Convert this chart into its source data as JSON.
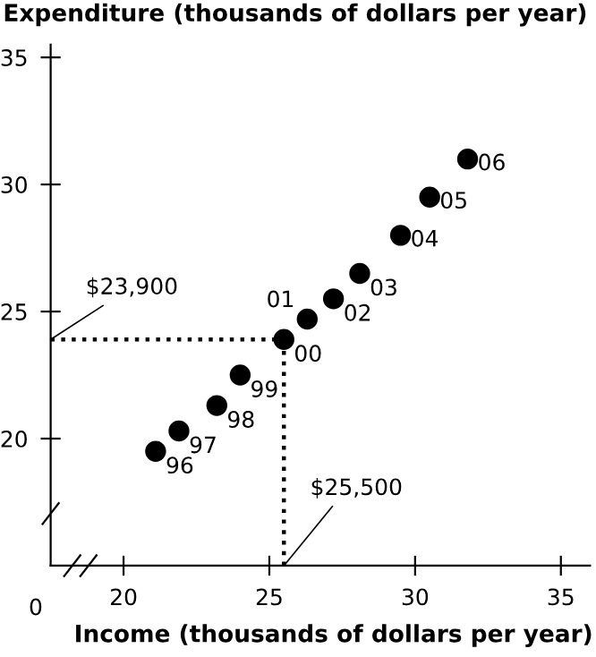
{
  "chart_data": {
    "type": "scatter",
    "xlabel": "Income (thousands of dollars per year)",
    "ylabel": "Expenditure (thousands of dollars per year)",
    "x": [
      21.1,
      21.9,
      23.2,
      24.0,
      25.5,
      26.3,
      27.2,
      28.1,
      29.5,
      30.5,
      31.8
    ],
    "series": [
      {
        "color": "#000000",
        "values": [
          19.5,
          20.3,
          21.3,
          22.5,
          23.9,
          24.7,
          25.5,
          26.5,
          28.0,
          29.5,
          31.0
        ]
      }
    ],
    "marker": "circle",
    "xlim": [
      17.5,
      36
    ],
    "ylim": [
      15,
      35.5
    ],
    "xticks": [
      20,
      25,
      30,
      35
    ],
    "yticks": [
      20,
      25,
      30,
      35
    ],
    "grid": false,
    "ref_lines": [
      {
        "axis": "x",
        "value": 25.5,
        "label": "$25,500",
        "line_style": "dotted",
        "color": "#000000"
      },
      {
        "axis": "y",
        "value": 23.9,
        "label": "$23,900",
        "line_style": "dotted",
        "color": "#000000"
      }
    ],
    "annotations": [
      "0",
      {
        "text": "96",
        "x": 21.1,
        "y": 19.5
      },
      {
        "text": "97",
        "x": 21.9,
        "y": 20.3
      },
      {
        "text": "98",
        "x": 23.2,
        "y": 21.3
      },
      {
        "text": "99",
        "x": 24.0,
        "y": 22.5
      },
      {
        "text": "00",
        "x": 25.5,
        "y": 23.9
      },
      {
        "text": "01",
        "x": 26.3,
        "y": 24.7
      },
      {
        "text": "02",
        "x": 27.2,
        "y": 25.5
      },
      {
        "text": "03",
        "x": 28.1,
        "y": 26.5
      },
      {
        "text": "04",
        "x": 29.5,
        "y": 28.0
      },
      {
        "text": "05",
        "x": 30.5,
        "y": 29.5
      },
      {
        "text": "06",
        "x": 31.8,
        "y": 31.0
      }
    ]
  }
}
